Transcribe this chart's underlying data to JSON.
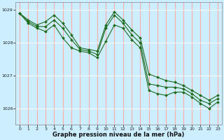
{
  "title": "Graphe pression niveau de la mer (hPa)",
  "bg_color": "#cceeff",
  "vgrid_color": "#ffaaaa",
  "hgrid_color": "#ffffff",
  "line_color": "#1e6b1e",
  "marker_color": "#1e6b1e",
  "xlim": [
    -0.5,
    23.5
  ],
  "ylim": [
    1025.5,
    1029.25
  ],
  "yticks": [
    1026,
    1027,
    1028,
    1029
  ],
  "xticks": [
    0,
    1,
    2,
    3,
    4,
    5,
    6,
    7,
    8,
    9,
    10,
    11,
    12,
    13,
    14,
    15,
    16,
    17,
    18,
    19,
    20,
    21,
    22,
    23
  ],
  "series": [
    [
      1028.9,
      1028.7,
      1028.55,
      1028.65,
      1028.85,
      1028.6,
      1028.25,
      1027.85,
      1027.8,
      1027.75,
      1028.55,
      1028.95,
      1028.7,
      1028.4,
      1028.15,
      1027.05,
      1026.95,
      1026.85,
      1026.8,
      1026.7,
      1026.55,
      1026.4,
      1026.25,
      1026.4
    ],
    [
      1028.9,
      1028.65,
      1028.5,
      1028.5,
      1028.7,
      1028.45,
      1028.1,
      1027.8,
      1027.75,
      1027.65,
      1028.45,
      1028.85,
      1028.6,
      1028.25,
      1028.0,
      1026.75,
      1026.7,
      1026.65,
      1026.65,
      1026.6,
      1026.45,
      1026.25,
      1026.15,
      1026.3
    ],
    [
      1028.9,
      1028.6,
      1028.45,
      1028.35,
      1028.55,
      1028.15,
      1027.85,
      1027.75,
      1027.7,
      1027.55,
      1028.05,
      1028.55,
      1028.45,
      1028.1,
      1027.85,
      1026.55,
      1026.45,
      1026.4,
      1026.5,
      1026.5,
      1026.35,
      1026.15,
      1026.0,
      1026.2
    ]
  ]
}
